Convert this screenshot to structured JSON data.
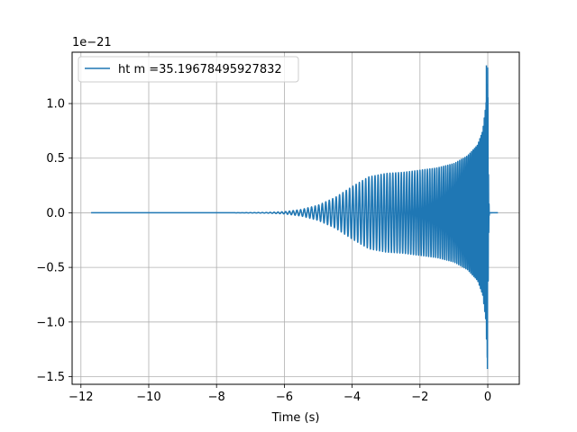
{
  "chart_data": {
    "type": "line",
    "title": "",
    "xlabel": "Time (s)",
    "ylabel": "",
    "y_offset_label": "1e−21",
    "xlim": [
      -12.26,
      0.93
    ],
    "ylim": [
      -1.57,
      1.47
    ],
    "grid": true,
    "legend_placement": "top-left",
    "x_ticks": [
      -12,
      -10,
      -8,
      -6,
      -4,
      -2,
      0
    ],
    "x_tick_labels": [
      "−12",
      "−10",
      "−8",
      "−6",
      "−4",
      "−2",
      "0"
    ],
    "y_ticks": [
      -1.5,
      -1.0,
      -0.5,
      0.0,
      0.5,
      1.0
    ],
    "y_tick_labels": [
      "−1.5",
      "−1.0",
      "−0.5",
      "0.0",
      "0.5",
      "1.0"
    ],
    "series": [
      {
        "name": "ht m =35.19678495927832",
        "color": "#1f77b4",
        "x_start": -11.7,
        "x_end": 0.3,
        "merger_time": 0.0,
        "peak_amplitude": 1.35,
        "min_amplitude": -1.43,
        "envelope_x": [
          -11.7,
          -7.5,
          -6.5,
          -6.0,
          -5.5,
          -5.0,
          -4.5,
          -4.0,
          -3.5,
          -3.0,
          -2.5,
          -2.0,
          -1.5,
          -1.0,
          -0.6,
          -0.3,
          -0.15,
          -0.05,
          0.0,
          0.05,
          0.3
        ],
        "envelope_y": [
          0.0,
          0.0,
          0.003,
          0.01,
          0.03,
          0.07,
          0.14,
          0.24,
          0.33,
          0.36,
          0.37,
          0.39,
          0.41,
          0.45,
          0.52,
          0.62,
          0.75,
          1.0,
          1.35,
          0.01,
          0.0
        ]
      }
    ]
  }
}
